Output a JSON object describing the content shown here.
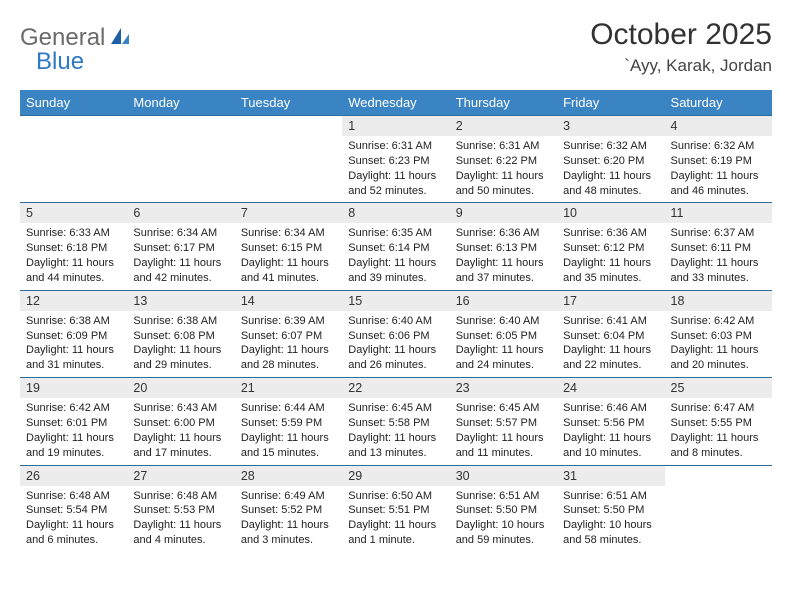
{
  "brand": {
    "word1": "General",
    "word2": "Blue"
  },
  "title": "October 2025",
  "location": "`Ayy, Karak, Jordan",
  "weekdays": [
    "Sunday",
    "Monday",
    "Tuesday",
    "Wednesday",
    "Thursday",
    "Friday",
    "Saturday"
  ],
  "colors": {
    "header_bg": "#3b84c4",
    "header_text": "#ffffff",
    "daynum_bg": "#ececec",
    "row_border": "#2f6aa0",
    "logo_gray": "#6a6a6a",
    "logo_blue": "#2f78c2"
  },
  "weeks": [
    [
      {
        "n": "",
        "sr": "",
        "ss": "",
        "dl": ""
      },
      {
        "n": "",
        "sr": "",
        "ss": "",
        "dl": ""
      },
      {
        "n": "",
        "sr": "",
        "ss": "",
        "dl": ""
      },
      {
        "n": "1",
        "sr": "Sunrise: 6:31 AM",
        "ss": "Sunset: 6:23 PM",
        "dl": "Daylight: 11 hours and 52 minutes."
      },
      {
        "n": "2",
        "sr": "Sunrise: 6:31 AM",
        "ss": "Sunset: 6:22 PM",
        "dl": "Daylight: 11 hours and 50 minutes."
      },
      {
        "n": "3",
        "sr": "Sunrise: 6:32 AM",
        "ss": "Sunset: 6:20 PM",
        "dl": "Daylight: 11 hours and 48 minutes."
      },
      {
        "n": "4",
        "sr": "Sunrise: 6:32 AM",
        "ss": "Sunset: 6:19 PM",
        "dl": "Daylight: 11 hours and 46 minutes."
      }
    ],
    [
      {
        "n": "5",
        "sr": "Sunrise: 6:33 AM",
        "ss": "Sunset: 6:18 PM",
        "dl": "Daylight: 11 hours and 44 minutes."
      },
      {
        "n": "6",
        "sr": "Sunrise: 6:34 AM",
        "ss": "Sunset: 6:17 PM",
        "dl": "Daylight: 11 hours and 42 minutes."
      },
      {
        "n": "7",
        "sr": "Sunrise: 6:34 AM",
        "ss": "Sunset: 6:15 PM",
        "dl": "Daylight: 11 hours and 41 minutes."
      },
      {
        "n": "8",
        "sr": "Sunrise: 6:35 AM",
        "ss": "Sunset: 6:14 PM",
        "dl": "Daylight: 11 hours and 39 minutes."
      },
      {
        "n": "9",
        "sr": "Sunrise: 6:36 AM",
        "ss": "Sunset: 6:13 PM",
        "dl": "Daylight: 11 hours and 37 minutes."
      },
      {
        "n": "10",
        "sr": "Sunrise: 6:36 AM",
        "ss": "Sunset: 6:12 PM",
        "dl": "Daylight: 11 hours and 35 minutes."
      },
      {
        "n": "11",
        "sr": "Sunrise: 6:37 AM",
        "ss": "Sunset: 6:11 PM",
        "dl": "Daylight: 11 hours and 33 minutes."
      }
    ],
    [
      {
        "n": "12",
        "sr": "Sunrise: 6:38 AM",
        "ss": "Sunset: 6:09 PM",
        "dl": "Daylight: 11 hours and 31 minutes."
      },
      {
        "n": "13",
        "sr": "Sunrise: 6:38 AM",
        "ss": "Sunset: 6:08 PM",
        "dl": "Daylight: 11 hours and 29 minutes."
      },
      {
        "n": "14",
        "sr": "Sunrise: 6:39 AM",
        "ss": "Sunset: 6:07 PM",
        "dl": "Daylight: 11 hours and 28 minutes."
      },
      {
        "n": "15",
        "sr": "Sunrise: 6:40 AM",
        "ss": "Sunset: 6:06 PM",
        "dl": "Daylight: 11 hours and 26 minutes."
      },
      {
        "n": "16",
        "sr": "Sunrise: 6:40 AM",
        "ss": "Sunset: 6:05 PM",
        "dl": "Daylight: 11 hours and 24 minutes."
      },
      {
        "n": "17",
        "sr": "Sunrise: 6:41 AM",
        "ss": "Sunset: 6:04 PM",
        "dl": "Daylight: 11 hours and 22 minutes."
      },
      {
        "n": "18",
        "sr": "Sunrise: 6:42 AM",
        "ss": "Sunset: 6:03 PM",
        "dl": "Daylight: 11 hours and 20 minutes."
      }
    ],
    [
      {
        "n": "19",
        "sr": "Sunrise: 6:42 AM",
        "ss": "Sunset: 6:01 PM",
        "dl": "Daylight: 11 hours and 19 minutes."
      },
      {
        "n": "20",
        "sr": "Sunrise: 6:43 AM",
        "ss": "Sunset: 6:00 PM",
        "dl": "Daylight: 11 hours and 17 minutes."
      },
      {
        "n": "21",
        "sr": "Sunrise: 6:44 AM",
        "ss": "Sunset: 5:59 PM",
        "dl": "Daylight: 11 hours and 15 minutes."
      },
      {
        "n": "22",
        "sr": "Sunrise: 6:45 AM",
        "ss": "Sunset: 5:58 PM",
        "dl": "Daylight: 11 hours and 13 minutes."
      },
      {
        "n": "23",
        "sr": "Sunrise: 6:45 AM",
        "ss": "Sunset: 5:57 PM",
        "dl": "Daylight: 11 hours and 11 minutes."
      },
      {
        "n": "24",
        "sr": "Sunrise: 6:46 AM",
        "ss": "Sunset: 5:56 PM",
        "dl": "Daylight: 11 hours and 10 minutes."
      },
      {
        "n": "25",
        "sr": "Sunrise: 6:47 AM",
        "ss": "Sunset: 5:55 PM",
        "dl": "Daylight: 11 hours and 8 minutes."
      }
    ],
    [
      {
        "n": "26",
        "sr": "Sunrise: 6:48 AM",
        "ss": "Sunset: 5:54 PM",
        "dl": "Daylight: 11 hours and 6 minutes."
      },
      {
        "n": "27",
        "sr": "Sunrise: 6:48 AM",
        "ss": "Sunset: 5:53 PM",
        "dl": "Daylight: 11 hours and 4 minutes."
      },
      {
        "n": "28",
        "sr": "Sunrise: 6:49 AM",
        "ss": "Sunset: 5:52 PM",
        "dl": "Daylight: 11 hours and 3 minutes."
      },
      {
        "n": "29",
        "sr": "Sunrise: 6:50 AM",
        "ss": "Sunset: 5:51 PM",
        "dl": "Daylight: 11 hours and 1 minute."
      },
      {
        "n": "30",
        "sr": "Sunrise: 6:51 AM",
        "ss": "Sunset: 5:50 PM",
        "dl": "Daylight: 10 hours and 59 minutes."
      },
      {
        "n": "31",
        "sr": "Sunrise: 6:51 AM",
        "ss": "Sunset: 5:50 PM",
        "dl": "Daylight: 10 hours and 58 minutes."
      },
      {
        "n": "",
        "sr": "",
        "ss": "",
        "dl": ""
      }
    ]
  ]
}
